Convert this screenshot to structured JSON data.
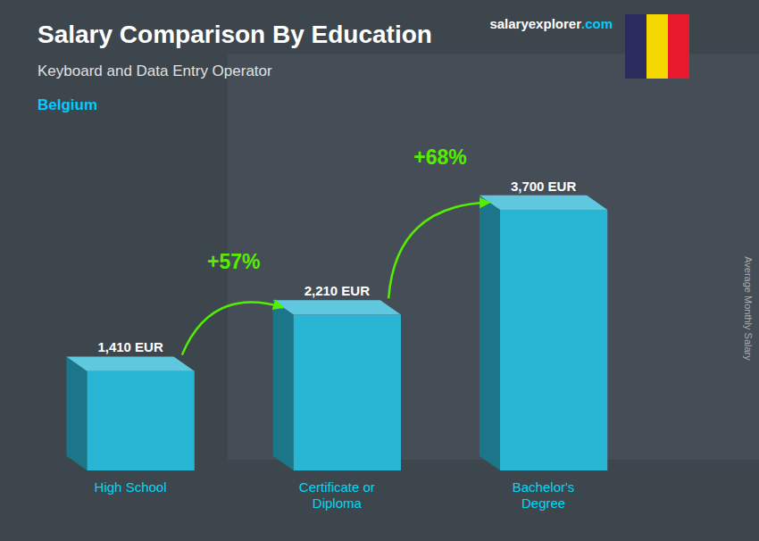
{
  "chart_data": {
    "type": "bar",
    "title": "Salary Comparison By Education",
    "subtitle": "Keyboard and Data Entry Operator",
    "y_label": "Average Monthly Salary",
    "categories": [
      "High School",
      "Certificate or\nDiploma",
      "Bachelor's\nDegree"
    ],
    "values": [
      1410,
      2210,
      3700
    ],
    "value_labels": [
      "1,410 EUR",
      "2,210 EUR",
      "3,700 EUR"
    ],
    "data_labels": true,
    "color": "#29b6d4",
    "ylim": [
      0,
      4600
    ],
    "tick_labels": false,
    "grid": false,
    "annotations": [
      {
        "text": "Belgium",
        "color": "#00ccff"
      },
      {
        "text": "salaryexplorer",
        "color": "#ffffff"
      },
      {
        "text": ".com",
        "color": "#00ccff"
      },
      {
        "text": "+57%",
        "color": "#55ee00"
      },
      {
        "text": "+68%",
        "color": "#55ee00"
      }
    ]
  }
}
